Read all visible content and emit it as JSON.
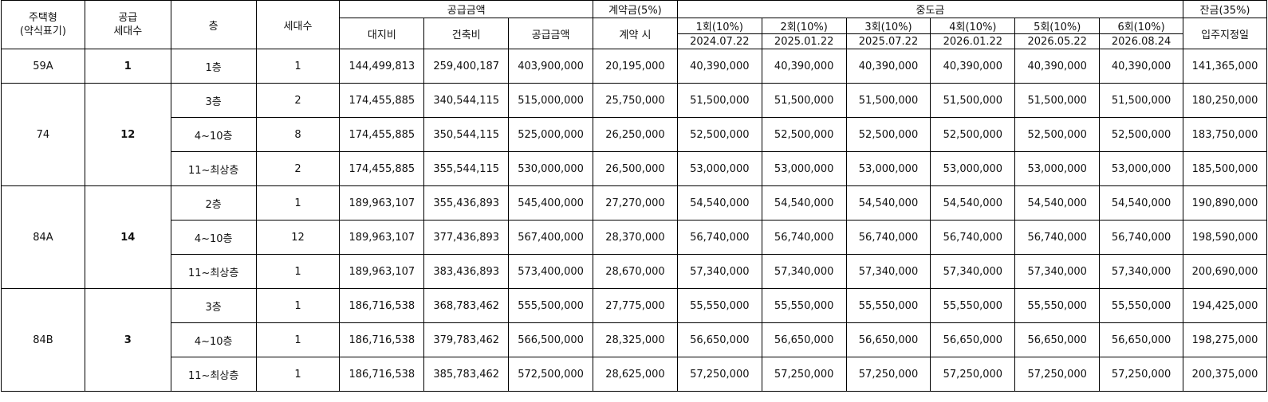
{
  "headers": {
    "housing_type_line1": "주택형",
    "housing_type_line2": "(약식표기)",
    "supply_units_line1": "공급",
    "supply_units_line2": "세대수",
    "floor": "층",
    "households": "세대수",
    "supply_amount": "공급금액",
    "land_cost": "대지비",
    "building_cost": "건축비",
    "supply_total": "공급금액",
    "deposit": "계약금(5%)",
    "deposit_at": "계약 시",
    "interim": "중도금",
    "interim_rounds": [
      {
        "label": "1회(10%)",
        "date": "2024.07.22"
      },
      {
        "label": "2회(10%)",
        "date": "2025.01.22"
      },
      {
        "label": "3회(10%)",
        "date": "2025.07.22"
      },
      {
        "label": "4회(10%)",
        "date": "2026.01.22"
      },
      {
        "label": "5회(10%)",
        "date": "2026.05.22"
      },
      {
        "label": "6회(10%)",
        "date": "2026.08.24"
      }
    ],
    "balance": "잔금(35%)",
    "balance_date": "입주지정일"
  },
  "groups": [
    {
      "type": "59A",
      "units": "1",
      "rows": [
        {
          "floor": "1층",
          "households": "1",
          "land": "144,499,813",
          "building": "259,400,187",
          "supply": "403,900,000",
          "deposit": "20,195,000",
          "interim": [
            "40,390,000",
            "40,390,000",
            "40,390,000",
            "40,390,000",
            "40,390,000",
            "40,390,000"
          ],
          "balance": "141,365,000"
        }
      ]
    },
    {
      "type": "74",
      "units": "12",
      "rows": [
        {
          "floor": "3층",
          "households": "2",
          "land": "174,455,885",
          "building": "340,544,115",
          "supply": "515,000,000",
          "deposit": "25,750,000",
          "interim": [
            "51,500,000",
            "51,500,000",
            "51,500,000",
            "51,500,000",
            "51,500,000",
            "51,500,000"
          ],
          "balance": "180,250,000"
        },
        {
          "floor": "4~10층",
          "households": "8",
          "land": "174,455,885",
          "building": "350,544,115",
          "supply": "525,000,000",
          "deposit": "26,250,000",
          "interim": [
            "52,500,000",
            "52,500,000",
            "52,500,000",
            "52,500,000",
            "52,500,000",
            "52,500,000"
          ],
          "balance": "183,750,000"
        },
        {
          "floor": "11~최상층",
          "households": "2",
          "land": "174,455,885",
          "building": "355,544,115",
          "supply": "530,000,000",
          "deposit": "26,500,000",
          "interim": [
            "53,000,000",
            "53,000,000",
            "53,000,000",
            "53,000,000",
            "53,000,000",
            "53,000,000"
          ],
          "balance": "185,500,000"
        }
      ]
    },
    {
      "type": "84A",
      "units": "14",
      "rows": [
        {
          "floor": "2층",
          "households": "1",
          "land": "189,963,107",
          "building": "355,436,893",
          "supply": "545,400,000",
          "deposit": "27,270,000",
          "interim": [
            "54,540,000",
            "54,540,000",
            "54,540,000",
            "54,540,000",
            "54,540,000",
            "54,540,000"
          ],
          "balance": "190,890,000"
        },
        {
          "floor": "4~10층",
          "households": "12",
          "land": "189,963,107",
          "building": "377,436,893",
          "supply": "567,400,000",
          "deposit": "28,370,000",
          "interim": [
            "56,740,000",
            "56,740,000",
            "56,740,000",
            "56,740,000",
            "56,740,000",
            "56,740,000"
          ],
          "balance": "198,590,000"
        },
        {
          "floor": "11~최상층",
          "households": "1",
          "land": "189,963,107",
          "building": "383,436,893",
          "supply": "573,400,000",
          "deposit": "28,670,000",
          "interim": [
            "57,340,000",
            "57,340,000",
            "57,340,000",
            "57,340,000",
            "57,340,000",
            "57,340,000"
          ],
          "balance": "200,690,000"
        }
      ]
    },
    {
      "type": "84B",
      "units": "3",
      "rows": [
        {
          "floor": "3층",
          "households": "1",
          "land": "186,716,538",
          "building": "368,783,462",
          "supply": "555,500,000",
          "deposit": "27,775,000",
          "interim": [
            "55,550,000",
            "55,550,000",
            "55,550,000",
            "55,550,000",
            "55,550,000",
            "55,550,000"
          ],
          "balance": "194,425,000"
        },
        {
          "floor": "4~10층",
          "households": "1",
          "land": "186,716,538",
          "building": "379,783,462",
          "supply": "566,500,000",
          "deposit": "28,325,000",
          "interim": [
            "56,650,000",
            "56,650,000",
            "56,650,000",
            "56,650,000",
            "56,650,000",
            "56,650,000"
          ],
          "balance": "198,275,000"
        },
        {
          "floor": "11~최상층",
          "households": "1",
          "land": "186,716,538",
          "building": "385,783,462",
          "supply": "572,500,000",
          "deposit": "28,625,000",
          "interim": [
            "57,250,000",
            "57,250,000",
            "57,250,000",
            "57,250,000",
            "57,250,000",
            "57,250,000"
          ],
          "balance": "200,375,000"
        }
      ]
    }
  ]
}
